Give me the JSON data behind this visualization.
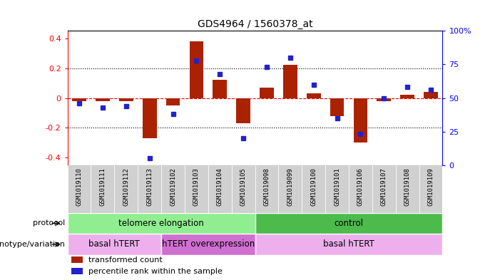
{
  "title": "GDS4964 / 1560378_at",
  "samples": [
    "GSM1019110",
    "GSM1019111",
    "GSM1019112",
    "GSM1019113",
    "GSM1019102",
    "GSM1019103",
    "GSM1019104",
    "GSM1019105",
    "GSM1019098",
    "GSM1019099",
    "GSM1019100",
    "GSM1019101",
    "GSM1019106",
    "GSM1019107",
    "GSM1019108",
    "GSM1019109"
  ],
  "transformed_count": [
    -0.02,
    -0.02,
    -0.02,
    -0.27,
    -0.05,
    0.38,
    0.12,
    -0.17,
    0.07,
    0.22,
    0.03,
    -0.12,
    -0.3,
    -0.02,
    0.02,
    0.04
  ],
  "percentile_rank": [
    46,
    43,
    44,
    5,
    38,
    78,
    68,
    20,
    73,
    80,
    60,
    35,
    23,
    50,
    58,
    56
  ],
  "protocol_groups": [
    {
      "label": "telomere elongation",
      "start": 0,
      "end": 8,
      "color": "#90EE90"
    },
    {
      "label": "control",
      "start": 8,
      "end": 16,
      "color": "#4CBB4C"
    }
  ],
  "genotype_groups": [
    {
      "label": "basal hTERT",
      "start": 0,
      "end": 4,
      "color": "#EDB0ED"
    },
    {
      "label": "hTERT overexpression",
      "start": 4,
      "end": 8,
      "color": "#D070D0"
    },
    {
      "label": "basal hTERT",
      "start": 8,
      "end": 16,
      "color": "#EDB0ED"
    }
  ],
  "bar_color": "#AA2200",
  "dot_color": "#2222CC",
  "ylim": [
    -0.45,
    0.45
  ],
  "y2lim": [
    0,
    100
  ],
  "yticks": [
    -0.4,
    -0.2,
    0.0,
    0.2,
    0.4
  ],
  "y2ticks": [
    0,
    25,
    50,
    75,
    100
  ],
  "y2ticklabels": [
    "0",
    "25",
    "50",
    "75",
    "100%"
  ],
  "legend_items": [
    {
      "color": "#AA2200",
      "label": "transformed count"
    },
    {
      "color": "#2222CC",
      "label": "percentile rank within the sample"
    }
  ],
  "tick_bg_color": "#D0D0D0",
  "fig_bg_color": "#FFFFFF"
}
